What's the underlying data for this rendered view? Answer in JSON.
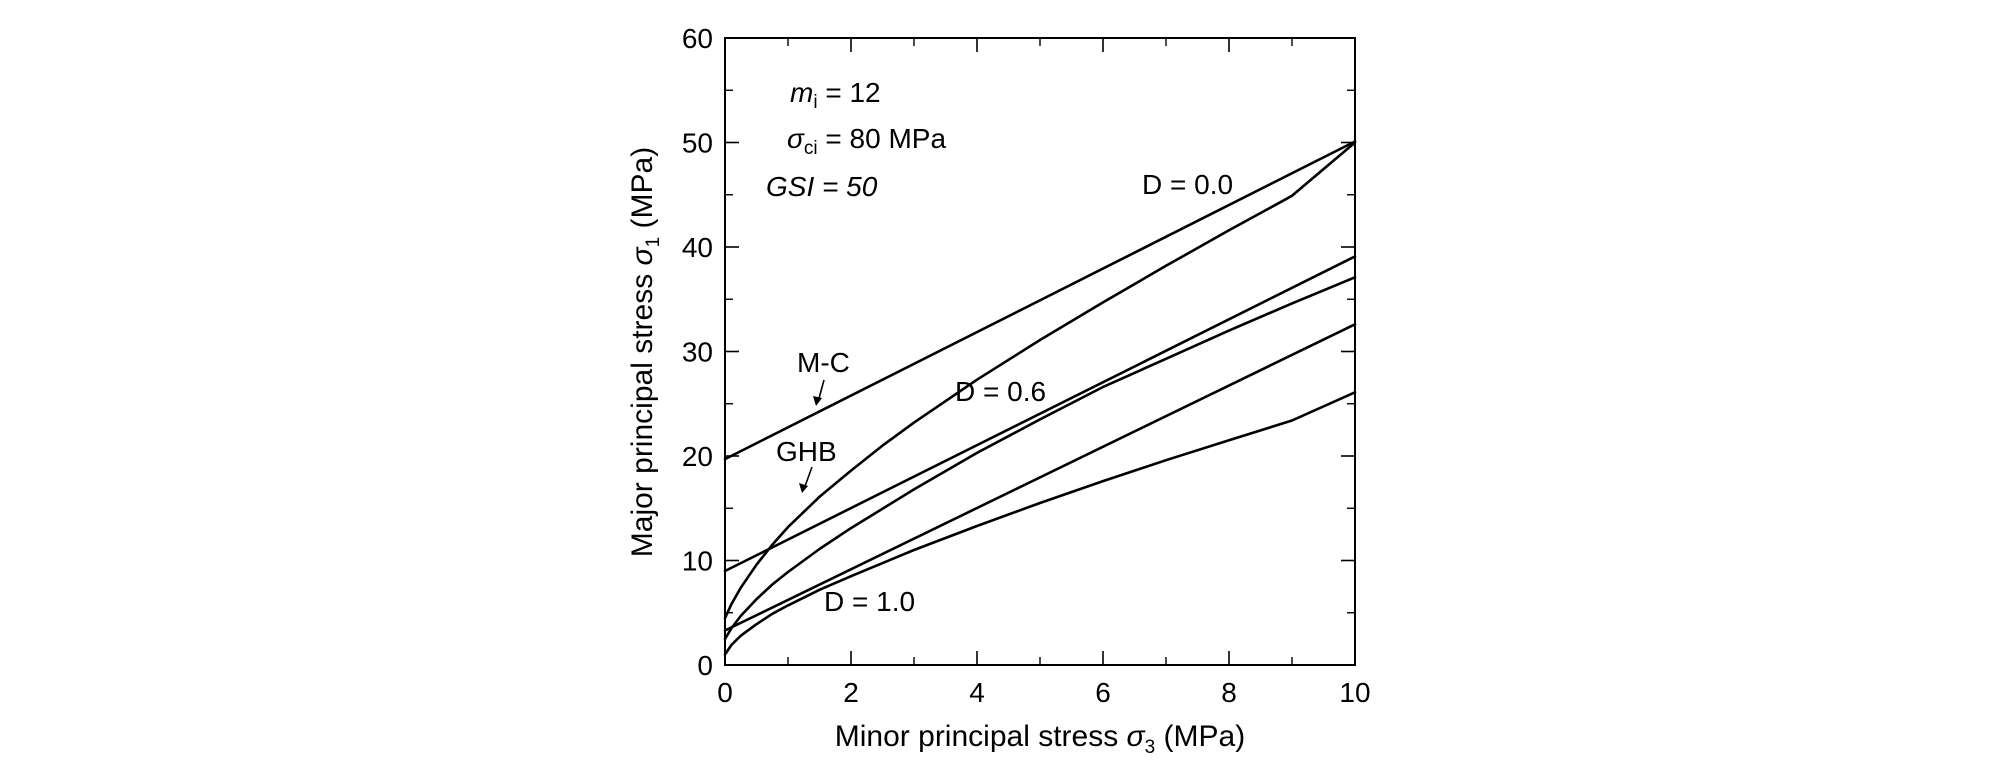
{
  "chart_data": {
    "type": "line",
    "xlabel": {
      "main": "Minor principal stress ",
      "symbol": "σ",
      "subscript": "3",
      "unit": " (MPa)"
    },
    "ylabel": {
      "main": "Major principal stress ",
      "symbol": "σ",
      "subscript": "1",
      "unit": " (MPa)"
    },
    "xlim": [
      0,
      10
    ],
    "ylim": [
      0,
      60
    ],
    "x_ticks": [
      0,
      2,
      4,
      6,
      8,
      10
    ],
    "y_ticks": [
      0,
      10,
      20,
      30,
      40,
      50,
      60
    ],
    "x_tick_labels": [
      "0",
      "2",
      "4",
      "6",
      "8",
      "10"
    ],
    "y_tick_labels": [
      "0",
      "10",
      "20",
      "30",
      "40",
      "50",
      "60"
    ],
    "grid": false,
    "parameters": [
      {
        "symbol": "m",
        "subscript": "i",
        "rest": " = 12"
      },
      {
        "symbol": "σ",
        "subscript": "ci",
        "rest": " = 80 MPa"
      },
      {
        "symbol": "GSI",
        "subscript": "",
        "rest": " = 50"
      }
    ],
    "curve_labels": {
      "d0": "D = 0.0",
      "d06": "D = 0.6",
      "d1": "D = 1.0",
      "mc": "M-C",
      "ghb": "GHB"
    },
    "series": [
      {
        "group": "D = 0.0",
        "kind": "M-C",
        "x": [
          0,
          10
        ],
        "y": [
          19.7,
          50.1
        ]
      },
      {
        "group": "D = 0.0",
        "kind": "GHB",
        "x": [
          0,
          0.1,
          0.25,
          0.5,
          0.75,
          1,
          1.5,
          2,
          2.5,
          3,
          4,
          5,
          6,
          7,
          8,
          9,
          10
        ],
        "y": [
          4.5,
          5.8,
          7.4,
          9.6,
          11.5,
          13.2,
          16.1,
          18.6,
          21.0,
          23.2,
          27.3,
          31.1,
          34.7,
          38.2,
          41.6,
          44.9,
          50.0
        ]
      },
      {
        "group": "D = 0.6",
        "kind": "M-C",
        "x": [
          0,
          10
        ],
        "y": [
          9.0,
          39.1
        ]
      },
      {
        "group": "D = 0.6",
        "kind": "GHB",
        "x": [
          0,
          0.1,
          0.25,
          0.5,
          0.75,
          1,
          1.5,
          2,
          3,
          4,
          5,
          6,
          7,
          8,
          9,
          10
        ],
        "y": [
          2.5,
          3.5,
          4.7,
          6.3,
          7.7,
          8.9,
          11.1,
          13.1,
          16.8,
          20.3,
          23.5,
          26.6,
          29.3,
          32.0,
          34.6,
          37.1
        ]
      },
      {
        "group": "D = 1.0",
        "kind": "M-C",
        "x": [
          0,
          10
        ],
        "y": [
          3.3,
          32.6
        ]
      },
      {
        "group": "D = 1.0",
        "kind": "GHB",
        "x": [
          0,
          0.1,
          0.25,
          0.5,
          0.75,
          1,
          1.5,
          2,
          3,
          4,
          5,
          6,
          7,
          8,
          9,
          10
        ],
        "y": [
          1.0,
          1.9,
          2.8,
          3.9,
          4.9,
          5.7,
          7.2,
          8.5,
          11.0,
          13.3,
          15.5,
          17.6,
          19.6,
          21.5,
          23.4,
          26.1
        ]
      }
    ]
  }
}
